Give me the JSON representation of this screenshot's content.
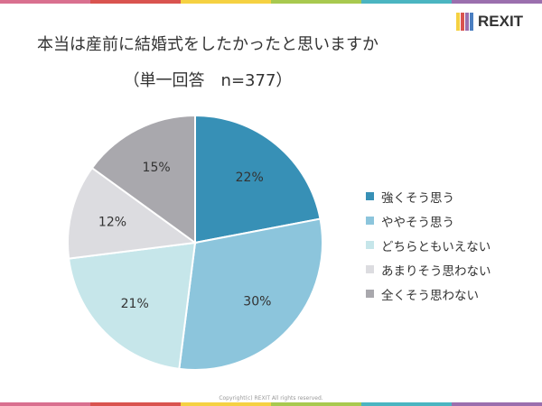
{
  "title": "本当は産前に結婚式をしたかったと思いますか",
  "subtitle": "（単一回答　n=377）",
  "logo": "REXIT",
  "copyright": "Copyright(c) REXIT All rights reserved.",
  "stripe_colors": [
    "#d9708f",
    "#d9534f",
    "#f5d142",
    "#a8c94f",
    "#4bb5c1",
    "#9b6fae"
  ],
  "chart_data": {
    "type": "pie",
    "start": "12 o'clock, clockwise",
    "legend_position": "right",
    "categories": [
      "強くそう思う",
      "ややそう思う",
      "どちらともいえない",
      "あまりそう思わない",
      "全くそう思わない"
    ],
    "values": [
      22,
      30,
      21,
      12,
      15
    ],
    "labels": [
      "22%",
      "30%",
      "21%",
      "12%",
      "15%"
    ],
    "colors": [
      "#3790b6",
      "#8cc5dc",
      "#c6e6ea",
      "#dcdce0",
      "#a9a8ad"
    ]
  }
}
